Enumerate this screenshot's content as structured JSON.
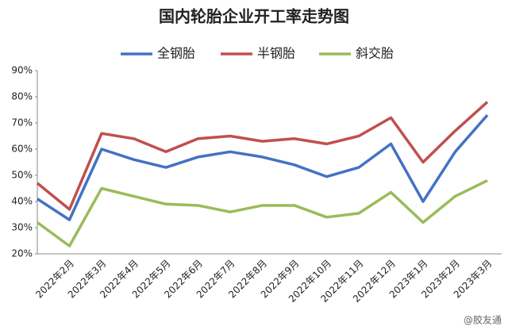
{
  "chart_data": {
    "type": "line",
    "title": "国内轮胎企业开工率走势图",
    "categories": [
      null,
      "2022年2月",
      "2022年3月",
      "2022年4月",
      "2022年5月",
      "2022年6月",
      "2022年7月",
      "2022年8月",
      "2022年9月",
      "2022年10月",
      "2022年11月",
      "2022年12月",
      "2023年1月",
      "2023年2月",
      "2023年3月"
    ],
    "series": [
      {
        "name": "全钢胎",
        "color": "#4472c4",
        "values": [
          41,
          33,
          60,
          56,
          53,
          57,
          59,
          57,
          54,
          49.5,
          53,
          62,
          40,
          59,
          73
        ]
      },
      {
        "name": "半钢胎",
        "color": "#c0504d",
        "values": [
          47,
          37,
          66,
          64,
          59,
          64,
          65,
          63,
          64,
          62,
          65,
          72,
          55,
          67,
          78
        ]
      },
      {
        "name": "斜交胎",
        "color": "#9bbb59",
        "values": [
          32,
          23,
          45,
          42,
          39,
          38.5,
          36,
          38.5,
          38.5,
          34,
          35.5,
          43.5,
          32,
          42,
          48
        ]
      }
    ],
    "ylim": [
      20,
      90
    ],
    "yticks": [
      {
        "value": 20,
        "label": "20%"
      },
      {
        "value": 30,
        "label": "30%"
      },
      {
        "value": 40,
        "label": "40%"
      },
      {
        "value": 50,
        "label": "50%"
      },
      {
        "value": 60,
        "label": "60%"
      },
      {
        "value": 70,
        "label": "70%"
      },
      {
        "value": 80,
        "label": "80%"
      },
      {
        "value": 90,
        "label": "90%"
      }
    ],
    "grid": false,
    "legend": "top",
    "watermark": "@胶友通"
  }
}
